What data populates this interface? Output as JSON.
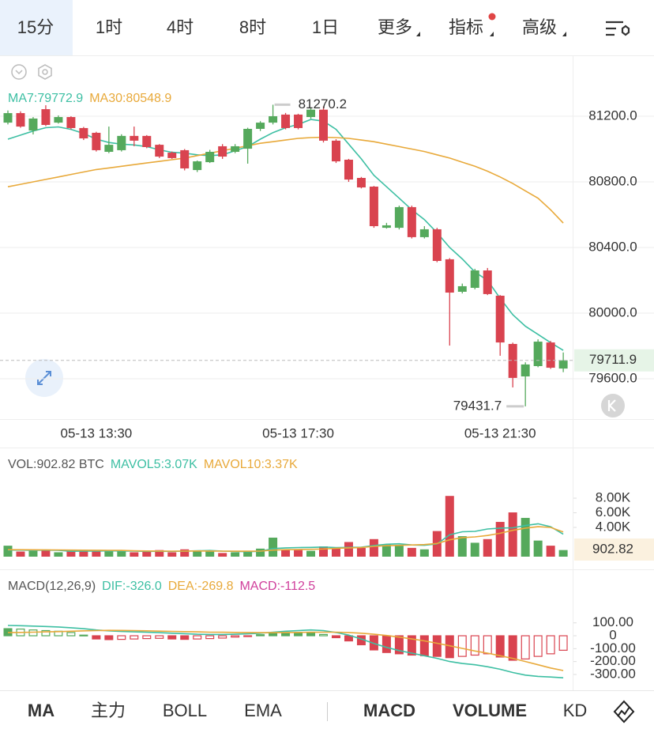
{
  "tabs": {
    "items": [
      "15分",
      "1时",
      "4时",
      "8时",
      "1日",
      "更多",
      "指标",
      "高级"
    ],
    "active": 0
  },
  "chart_data": [
    {
      "type": "candlestick",
      "categories": [
        null,
        null,
        null,
        null,
        null,
        null,
        null,
        "05-13 13:30",
        null,
        null,
        null,
        null,
        null,
        null,
        null,
        null,
        null,
        null,
        null,
        null,
        null,
        null,
        null,
        "05-13 17:30",
        null,
        null,
        null,
        null,
        null,
        null,
        null,
        null,
        null,
        null,
        null,
        null,
        null,
        null,
        null,
        "05-13 21:30",
        null,
        null,
        null,
        null,
        null
      ],
      "open": [
        81161,
        81219,
        81113,
        81243,
        81161,
        81195,
        81128,
        81099,
        80983,
        80993,
        81080,
        81080,
        81026,
        80978,
        80993,
        80872,
        80920,
        81017,
        80983,
        81002,
        81123,
        81161,
        81210,
        81210,
        81195,
        81240,
        81051,
        80935,
        80824,
        80771,
        80520,
        80520,
        80646,
        80463,
        80511,
        80328,
        80130,
        80154,
        80260,
        80106,
        79812,
        79614,
        79677,
        79821,
        79662
      ],
      "close": [
        81219,
        81137,
        81186,
        81147,
        81195,
        81128,
        81065,
        80993,
        81026,
        81080,
        81051,
        81012,
        80954,
        80945,
        80882,
        80925,
        80983,
        80954,
        81017,
        81123,
        81161,
        81200,
        81128,
        81128,
        81240,
        81051,
        80925,
        80814,
        80766,
        80530,
        80535,
        80646,
        80463,
        80511,
        80318,
        80125,
        80164,
        80260,
        80116,
        79821,
        79605,
        79687,
        79826,
        79667,
        79711.9
      ],
      "high": [
        81235,
        81230,
        81195,
        81267,
        81205,
        81200,
        81135,
        81105,
        81137,
        81090,
        81137,
        81085,
        81030,
        80985,
        81000,
        80930,
        80995,
        81030,
        81030,
        81130,
        81170,
        81270.2,
        81220,
        81215,
        81250,
        81260,
        81060,
        80940,
        80830,
        80775,
        80550,
        80655,
        80655,
        80530,
        80520,
        80335,
        80180,
        80270,
        80275,
        80110,
        79820,
        79700,
        79840,
        79830,
        79760
      ],
      "low": [
        81150,
        81130,
        81089,
        81140,
        81155,
        81120,
        81055,
        80985,
        80975,
        80985,
        81017,
        81005,
        80945,
        80940,
        80870,
        80860,
        80915,
        80940,
        80975,
        80911,
        81110,
        81150,
        81120,
        81120,
        81185,
        81040,
        80915,
        80800,
        80760,
        80520,
        80515,
        80510,
        80455,
        80455,
        80310,
        79802,
        80120,
        80145,
        80110,
        79740,
        79547,
        79431.7,
        79670,
        79660,
        79640
      ],
      "up_color": "#55a95c",
      "down_color": "#d9434f",
      "series": [
        {
          "name": "MA7:79772.9",
          "color": "#3dbfa3",
          "values": [
            81060,
            81085,
            81110,
            81130,
            81135,
            81120,
            81095,
            81060,
            81040,
            81030,
            81025,
            81015,
            80995,
            80980,
            80975,
            80965,
            80960,
            80965,
            80990,
            81015,
            81060,
            81100,
            81130,
            81150,
            81180,
            81170,
            81120,
            81030,
            80940,
            80840,
            80770,
            80700,
            80630,
            80570,
            80490,
            80400,
            80330,
            80250,
            80200,
            80090,
            79990,
            79920,
            79870,
            79820,
            79772.9
          ]
        },
        {
          "name": "MA30:80548.9",
          "color": "#e8a93a",
          "values": [
            80770,
            80785,
            80800,
            80815,
            80830,
            80845,
            80860,
            80875,
            80885,
            80895,
            80905,
            80915,
            80925,
            80935,
            80945,
            80960,
            80975,
            80990,
            81005,
            81020,
            81035,
            81045,
            81055,
            81065,
            81070,
            81072,
            81070,
            81065,
            81055,
            81045,
            81030,
            81015,
            81000,
            80985,
            80965,
            80945,
            80920,
            80895,
            80865,
            80830,
            80790,
            80745,
            80700,
            80630,
            80548.9
          ]
        }
      ],
      "ylim": [
        79354,
        81547
      ],
      "yticks": [
        {
          "value": 79600,
          "label": "79600.0"
        },
        {
          "value": 80000,
          "label": "80000.0"
        },
        {
          "value": 80400,
          "label": "80400.0"
        },
        {
          "value": 80800,
          "label": "80800.0"
        },
        {
          "value": 81200,
          "label": "81200.0"
        }
      ],
      "grid": true
    },
    {
      "type": "bar",
      "title": "VOL:902.82 BTC",
      "values": [
        1500,
        700,
        800,
        900,
        600,
        700,
        800,
        900,
        700,
        800,
        600,
        700,
        900,
        600,
        1000,
        800,
        700,
        500,
        600,
        800,
        1100,
        2600,
        900,
        900,
        800,
        1400,
        1200,
        2000,
        1200,
        2400,
        1700,
        1500,
        1200,
        1000,
        3500,
        8300,
        2800,
        1900,
        2400,
        4750,
        6050,
        5300,
        2200,
        1500,
        902.82
      ],
      "series": [
        {
          "name": "MAVOL5:3.07K",
          "color": "#3dbfa3",
          "values": [
            900,
            900,
            880,
            900,
            880,
            740,
            760,
            760,
            800,
            780,
            760,
            720,
            740,
            720,
            760,
            800,
            840,
            760,
            720,
            680,
            740,
            1100,
            1200,
            1240,
            1260,
            1320,
            1240,
            1260,
            1300,
            1520,
            1700,
            1760,
            1600,
            1560,
            1740,
            2980,
            3400,
            3460,
            3780,
            3900,
            3950,
            4260,
            4500,
            4100,
            3070
          ]
        },
        {
          "name": "MAVOL10:3.37K",
          "color": "#e8a93a",
          "values": [
            950,
            950,
            940,
            930,
            920,
            900,
            890,
            880,
            860,
            850,
            800,
            780,
            770,
            760,
            770,
            780,
            770,
            760,
            750,
            750,
            760,
            900,
            950,
            980,
            1000,
            1050,
            1150,
            1200,
            1250,
            1400,
            1500,
            1550,
            1600,
            1650,
            1800,
            2300,
            2600,
            2700,
            2900,
            3200,
            3600,
            3900,
            4100,
            4000,
            3370
          ]
        }
      ],
      "ylim": [
        0,
        11240
      ],
      "yticks": [
        {
          "value": 4000,
          "label": "4.00K"
        },
        {
          "value": 6000,
          "label": "6.00K"
        },
        {
          "value": 8000,
          "label": "8.00K"
        }
      ]
    },
    {
      "type": "macd",
      "title": "MACD(12,26,9)",
      "values_name": "MACD:-112.5",
      "values_color": "#d0409c",
      "values": [
        55,
        52,
        45,
        40,
        35,
        25,
        5,
        -25,
        -30,
        -28,
        -25,
        -22,
        -20,
        -25,
        -28,
        -25,
        -22,
        -18,
        -10,
        -3,
        8,
        18,
        20,
        22,
        25,
        10,
        -15,
        -40,
        -70,
        -110,
        -130,
        -140,
        -150,
        -155,
        -160,
        -170,
        -160,
        -150,
        -140,
        -165,
        -190,
        -180,
        -160,
        -140,
        -112.5
      ],
      "series": [
        {
          "name": "DIF:-326.0",
          "color": "#3dbfa3",
          "values": [
            80,
            78,
            75,
            72,
            68,
            62,
            55,
            45,
            38,
            33,
            30,
            27,
            24,
            20,
            16,
            12,
            10,
            10,
            12,
            15,
            20,
            28,
            35,
            40,
            45,
            40,
            25,
            5,
            -25,
            -60,
            -90,
            -115,
            -135,
            -155,
            -175,
            -200,
            -215,
            -225,
            -240,
            -260,
            -285,
            -305,
            -315,
            -320,
            -326.0
          ]
        },
        {
          "name": "DEA:-269.8",
          "color": "#e8a93a",
          "values": [
            25,
            26,
            28,
            30,
            32,
            35,
            38,
            40,
            42,
            41,
            40,
            38,
            36,
            34,
            32,
            30,
            28,
            27,
            26,
            25,
            24,
            24,
            25,
            26,
            27,
            28,
            28,
            25,
            20,
            12,
            2,
            -10,
            -25,
            -40,
            -58,
            -78,
            -98,
            -118,
            -135,
            -155,
            -175,
            -200,
            -225,
            -250,
            -269.8
          ]
        }
      ],
      "ylim": [
        -374,
        178
      ],
      "yticks": [
        {
          "value": -300,
          "label": "-300.00"
        },
        {
          "value": -200,
          "label": "-200.00"
        },
        {
          "value": -100,
          "label": "-100.00"
        },
        0,
        {
          "value": 100,
          "label": "100.00"
        }
      ]
    }
  ],
  "bottom_tabs": {
    "items": [
      "MA",
      "主力",
      "BOLL",
      "EMA",
      "MACD",
      "VOLUME",
      "KD"
    ],
    "active": [
      0,
      4,
      5
    ]
  }
}
